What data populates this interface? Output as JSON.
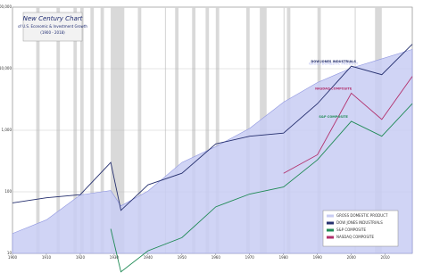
{
  "chart_data": {
    "type": "line",
    "title": "New Century Chart",
    "subtitle": "of U.S. Economic & Investment Growth",
    "period": "(1900 - 2018)",
    "x": [
      1900,
      1910,
      1920,
      1929,
      1932,
      1940,
      1950,
      1960,
      1970,
      1980,
      1990,
      2000,
      2009,
      2018
    ],
    "xlim": [
      1900,
      2018
    ],
    "xticks": [
      1900,
      1910,
      1920,
      1930,
      1940,
      1950,
      1960,
      1970,
      1980,
      1990,
      2000,
      2010
    ],
    "log_scale": true,
    "ylim": [
      10,
      100000
    ],
    "yticks": [
      10,
      100,
      {
        "value": 1000,
        "label": "1,000"
      },
      {
        "value": 10000,
        "label": "10,000"
      },
      {
        "value": 100000,
        "label": "100,000"
      }
    ],
    "y2lim": [
      10,
      100000
    ],
    "grid": true,
    "legend": "lower right",
    "recessions": [
      [
        1907,
        1908
      ],
      [
        1913,
        1914
      ],
      [
        1918,
        1919
      ],
      [
        1920,
        1921
      ],
      [
        1923,
        1924
      ],
      [
        1926,
        1927
      ],
      [
        1929,
        1933
      ],
      [
        1937,
        1938
      ],
      [
        1945,
        1945
      ],
      [
        1948,
        1949
      ],
      [
        1953,
        1954
      ],
      [
        1957,
        1958
      ],
      [
        1960,
        1961
      ],
      [
        1969,
        1970
      ],
      [
        1973,
        1975
      ],
      [
        1980,
        1980
      ],
      [
        1981,
        1982
      ],
      [
        1990,
        1991
      ],
      [
        2001,
        2001
      ],
      [
        2007,
        2009
      ]
    ],
    "series": [
      {
        "name": "GROSS DOMESTIC PRODUCT",
        "color": "#c8ccf3",
        "axis": "y2",
        "area": true,
        "values": [
          21,
          35,
          89,
          105,
          59,
          103,
          300,
          543,
          1075,
          2857,
          5963,
          10252,
          14448,
          20580
        ]
      },
      {
        "name": "DOW JONES INDUSTRIALS",
        "color": "#26306f",
        "values": [
          66,
          80,
          90,
          300,
          50,
          130,
          200,
          600,
          800,
          900,
          2700,
          11000,
          8000,
          25000
        ]
      },
      {
        "name": "S&P COMPOSITE",
        "color": "#1f8a55",
        "values": [
          null,
          null,
          null,
          25,
          5,
          11,
          18,
          57,
          92,
          120,
          330,
          1400,
          800,
          2700
        ]
      },
      {
        "name": "NASDAQ COMPOSITE",
        "color": "#b2306c",
        "values": [
          null,
          null,
          null,
          null,
          null,
          null,
          null,
          null,
          null,
          200,
          400,
          4000,
          1500,
          7500
        ]
      }
    ]
  }
}
